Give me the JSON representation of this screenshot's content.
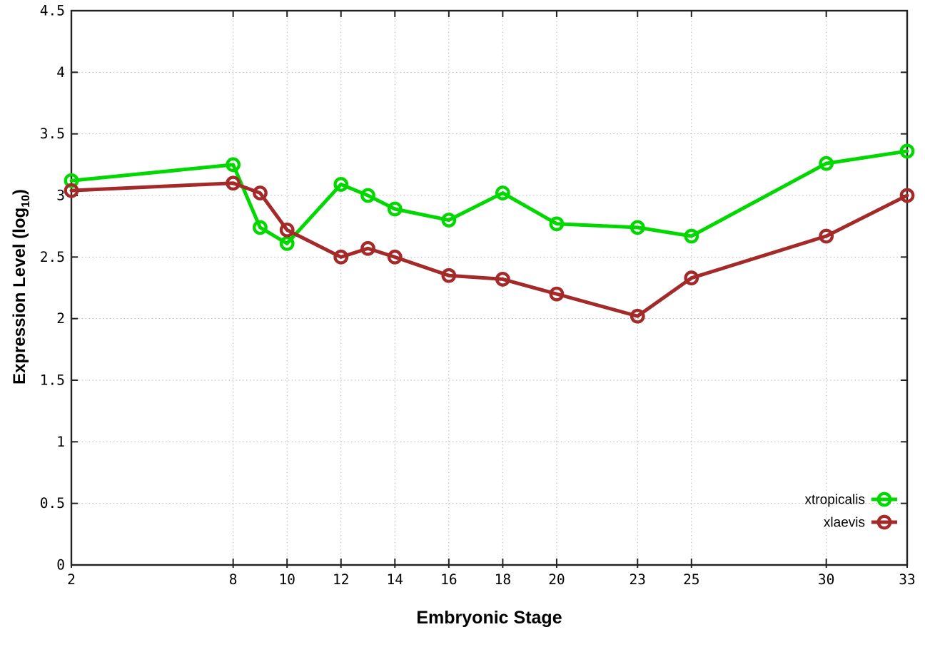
{
  "colors": {
    "series_green": "#00d800",
    "series_red": "#a42a2a",
    "grid": "#b5b5b5",
    "border": "#222222",
    "text": "#000000",
    "background": "#ffffff"
  },
  "ylabel_display": {
    "main": "Expression Level (log",
    "sub": "10",
    "close": ")"
  },
  "chart_data": {
    "type": "line",
    "title": "",
    "xlabel": "Embryonic Stage",
    "ylabel": "Expression Level (log10)",
    "xlim": [
      2,
      33
    ],
    "ylim": [
      0,
      4.5
    ],
    "grid": true,
    "marker": "open-circle",
    "legend_position": "inside-bottom-right",
    "x_ticks": [
      2,
      8,
      10,
      12,
      14,
      16,
      18,
      20,
      23,
      25,
      30,
      33
    ],
    "x_tick_labels": [
      "2",
      "8",
      "10",
      "12",
      "14",
      "16",
      "18",
      "20",
      "23",
      "25",
      "30",
      "33"
    ],
    "y_ticks": [
      0,
      0.5,
      1,
      1.5,
      2,
      2.5,
      3,
      3.5,
      4,
      4.5
    ],
    "y_tick_labels": [
      "0",
      "0.5",
      "1",
      "1.5",
      "2",
      "2.5",
      "3",
      "3.5",
      "4",
      "4.5"
    ],
    "x": [
      2,
      8,
      9,
      10,
      12,
      13,
      14,
      16,
      18,
      20,
      23,
      25,
      30,
      33
    ],
    "series": [
      {
        "name": "xtropicalis",
        "color": "#00d800",
        "marker": "open-circle",
        "values": [
          3.12,
          3.25,
          2.74,
          2.61,
          3.09,
          3.0,
          2.89,
          2.8,
          3.02,
          2.77,
          2.74,
          2.67,
          3.26,
          3.36
        ]
      },
      {
        "name": "xlaevis",
        "color": "#a42a2a",
        "marker": "open-circle",
        "values": [
          3.04,
          3.1,
          3.02,
          2.72,
          2.5,
          2.57,
          2.5,
          2.35,
          2.32,
          2.2,
          2.02,
          2.33,
          2.67,
          3.0
        ]
      }
    ],
    "legend": {
      "entries": [
        "xtropicalis",
        "xlaevis"
      ]
    }
  }
}
